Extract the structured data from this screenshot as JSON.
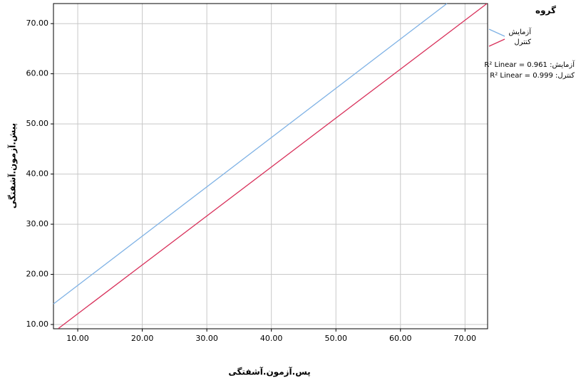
{
  "chart_data": {
    "type": "line",
    "x_label": "پس.آزمون.آشفتگی",
    "y_label": "پیش.آزمون.آشفتگی",
    "legend_title": "گروه",
    "legend_position": "right",
    "grid": true,
    "series": [
      {
        "name": "آزمایش",
        "color": "#7fb2e5",
        "x": [
          6.24,
          67.2
        ],
        "values": [
          14.1,
          74
        ]
      },
      {
        "name": "کنترل",
        "color": "#d8315b",
        "x": [
          7,
          73.4
        ],
        "values": [
          9.2,
          74
        ]
      }
    ],
    "annotations": [
      "آزمایش: R² Linear = 0.961",
      "کنترل: R² Linear = 0.999"
    ],
    "xlim": [
      6.24,
      73.5
    ],
    "ylim": [
      9.15,
      74
    ],
    "xticks": [
      {
        "value": 10,
        "label": "10.00"
      },
      {
        "value": 20,
        "label": "20.00"
      },
      {
        "value": 30,
        "label": "30.00"
      },
      {
        "value": 40,
        "label": "40.00"
      },
      {
        "value": 50,
        "label": "50.00"
      },
      {
        "value": 60,
        "label": "60.00"
      },
      {
        "value": 70,
        "label": "70.00"
      }
    ],
    "yticks": [
      {
        "value": 10,
        "label": "10.00"
      },
      {
        "value": 20,
        "label": "20.00"
      },
      {
        "value": 30,
        "label": "30.00"
      },
      {
        "value": 40,
        "label": "40.00"
      },
      {
        "value": 50,
        "label": "50.00"
      },
      {
        "value": 60,
        "label": "60.00"
      },
      {
        "value": 70,
        "label": "70.00"
      }
    ]
  }
}
